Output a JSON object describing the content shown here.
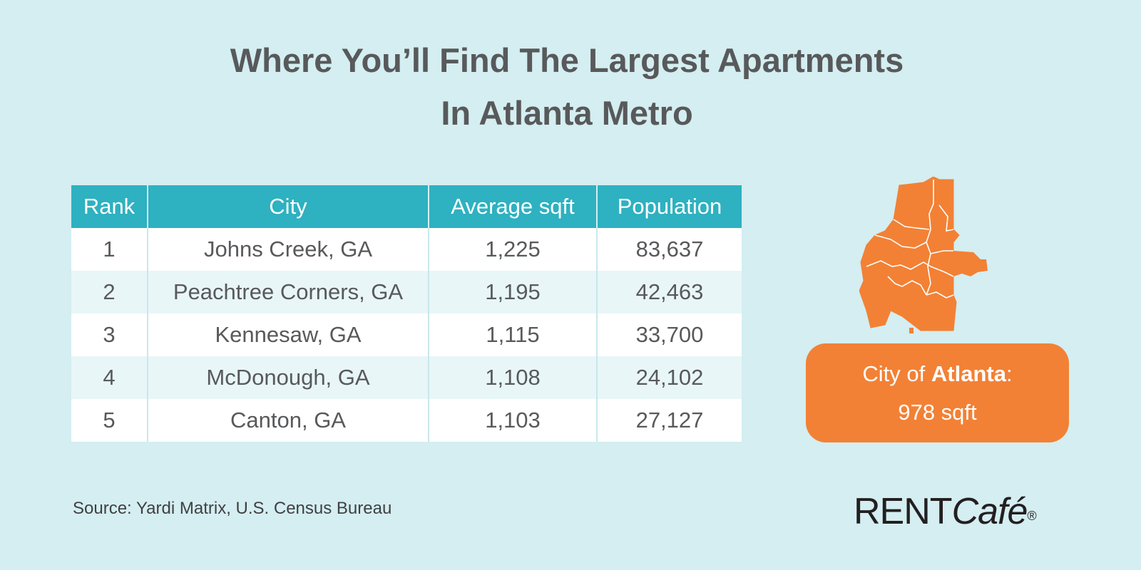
{
  "title": {
    "line1": "Where You’ll Find The Largest Apartments",
    "line2": "In Atlanta Metro"
  },
  "table": {
    "headers": [
      "Rank",
      "City",
      "Average sqft",
      "Population"
    ],
    "rows": [
      {
        "rank": "1",
        "city": "Johns Creek, GA",
        "sqft": "1,225",
        "population": "83,637"
      },
      {
        "rank": "2",
        "city": "Peachtree Corners, GA",
        "sqft": "1,195",
        "population": "42,463"
      },
      {
        "rank": "3",
        "city": "Kennesaw, GA",
        "sqft": "1,115",
        "population": "33,700"
      },
      {
        "rank": "4",
        "city": "McDonough, GA",
        "sqft": "1,108",
        "population": "24,102"
      },
      {
        "rank": "5",
        "city": "Canton, GA",
        "sqft": "1,103",
        "population": "27,127"
      }
    ]
  },
  "callout": {
    "prefix": "City of ",
    "city": "Atlanta",
    "suffix": ":",
    "value": "978 sqft"
  },
  "source": "Source: Yardi Matrix, U.S. Census Bureau",
  "logo": {
    "rent": "RENT",
    "cafe": "Café",
    "reg": "®"
  },
  "colors": {
    "background": "#d4eef1",
    "header": "#2eb1c0",
    "accent_orange": "#f28135",
    "text": "#58595b"
  },
  "icons": {
    "map": "atlanta-city-map-icon"
  }
}
